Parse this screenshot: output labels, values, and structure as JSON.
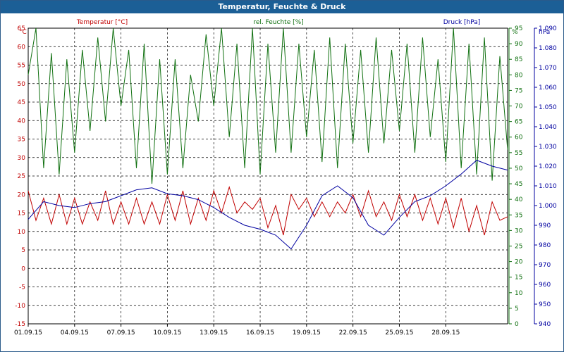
{
  "window": {
    "title": "Temperatur, Feuchte & Druck"
  },
  "colors": {
    "temperature": "#c00000",
    "humidity": "#107010",
    "pressure": "#0000a0",
    "titlebar": "#1c5f96",
    "grid": "#000000"
  },
  "chart_data": {
    "type": "line",
    "title": "Temperatur, Feuchte & Druck",
    "legend": [
      {
        "name": "Temperatur [°C]",
        "axis": "left"
      },
      {
        "name": "rel. Feuchte [%]",
        "axis": "right1"
      },
      {
        "name": "Druck [hPa]",
        "axis": "right2"
      }
    ],
    "axes": {
      "left": {
        "unit": "°C",
        "min": -15,
        "max": 65,
        "ticks": [
          65,
          60,
          55,
          50,
          45,
          40,
          35,
          30,
          25,
          20,
          15,
          10,
          5,
          0,
          -5,
          -10,
          -15
        ]
      },
      "right1": {
        "unit": "%",
        "min": 0,
        "max": 95,
        "ticks": [
          95,
          90,
          85,
          80,
          75,
          70,
          65,
          60,
          55,
          50,
          45,
          40,
          35,
          30,
          25,
          20,
          15,
          10,
          5,
          0
        ]
      },
      "right2": {
        "unit": "hPa",
        "min": 940,
        "max": 1090,
        "ticks": [
          1090,
          1080,
          1070,
          1060,
          1050,
          1040,
          1030,
          1020,
          1010,
          1000,
          990,
          980,
          970,
          960,
          950,
          940
        ]
      }
    },
    "x_ticks": [
      "01.09.15",
      "04.09.15",
      "07.09.15",
      "10.09.15",
      "13.09.15",
      "16.09.15",
      "19.09.15",
      "22.09.15",
      "25.09.15",
      "28.09.15"
    ],
    "x_range_days": [
      0,
      31
    ],
    "series": [
      {
        "name": "Temperatur",
        "axis": "left",
        "x_days": [
          0,
          0.5,
          1,
          1.5,
          2,
          2.5,
          3,
          3.5,
          4,
          4.5,
          5,
          5.5,
          6,
          6.5,
          7,
          7.5,
          8,
          8.5,
          9,
          9.5,
          10,
          10.5,
          11,
          11.5,
          12,
          12.5,
          13,
          13.5,
          14,
          14.5,
          15,
          15.5,
          16,
          16.5,
          17,
          17.5,
          18,
          18.5,
          19,
          19.5,
          20,
          20.5,
          21,
          21.5,
          22,
          22.5,
          23,
          23.5,
          24,
          24.5,
          25,
          25.5,
          26,
          26.5,
          27,
          27.5,
          28,
          28.5,
          29,
          29.5,
          30,
          30.5,
          31
        ],
        "values": [
          21,
          13,
          19,
          12,
          20,
          12,
          19,
          12,
          18,
          13,
          21,
          12,
          18,
          12,
          19,
          12,
          18,
          12,
          20,
          13,
          21,
          12,
          19,
          13,
          21,
          15,
          22,
          15,
          18,
          16,
          19,
          11,
          17,
          9,
          20,
          16,
          19,
          14,
          18,
          14,
          18,
          15,
          20,
          14,
          21,
          14,
          18,
          13,
          20,
          14,
          20,
          13,
          19,
          12,
          19,
          11,
          19,
          10,
          17,
          9,
          18,
          13,
          14
        ]
      },
      {
        "name": "rel. Feuchte",
        "axis": "right1",
        "x_days": [
          0,
          0.5,
          1,
          1.5,
          2,
          2.5,
          3,
          3.5,
          4,
          4.5,
          5,
          5.5,
          6,
          6.5,
          7,
          7.5,
          8,
          8.5,
          9,
          9.5,
          10,
          10.5,
          11,
          11.5,
          12,
          12.5,
          13,
          13.5,
          14,
          14.5,
          15,
          15.5,
          16,
          16.5,
          17,
          17.5,
          18,
          18.5,
          19,
          19.5,
          20,
          20.5,
          21,
          21.5,
          22,
          22.5,
          23,
          23.5,
          24,
          24.5,
          25,
          25.5,
          26,
          26.5,
          27,
          27.5,
          28,
          28.5,
          29,
          29.5,
          30,
          30.5,
          31
        ],
        "values": [
          80,
          95,
          50,
          87,
          48,
          85,
          55,
          88,
          62,
          92,
          65,
          95,
          70,
          88,
          50,
          90,
          45,
          85,
          48,
          85,
          50,
          80,
          65,
          93,
          70,
          95,
          60,
          90,
          50,
          95,
          48,
          90,
          55,
          95,
          55,
          90,
          60,
          88,
          52,
          92,
          50,
          90,
          58,
          88,
          55,
          92,
          58,
          88,
          62,
          90,
          55,
          92,
          60,
          85,
          52,
          95,
          50,
          90,
          48,
          92,
          46,
          86,
          56
        ]
      },
      {
        "name": "Druck",
        "axis": "right2",
        "x_days": [
          0,
          1,
          2,
          3,
          4,
          5,
          6,
          7,
          8,
          9,
          10,
          11,
          12,
          13,
          14,
          15,
          16,
          17,
          18,
          19,
          20,
          21,
          22,
          23,
          24,
          25,
          26,
          27,
          28,
          29,
          30,
          31
        ],
        "values": [
          993,
          1002,
          1000,
          999,
          1001,
          1002,
          1005,
          1008,
          1009,
          1006,
          1005,
          1003,
          999,
          994,
          990,
          988,
          985,
          978,
          990,
          1005,
          1010,
          1004,
          990,
          985,
          994,
          1002,
          1005,
          1010,
          1016,
          1023,
          1020,
          1018
        ]
      }
    ]
  }
}
